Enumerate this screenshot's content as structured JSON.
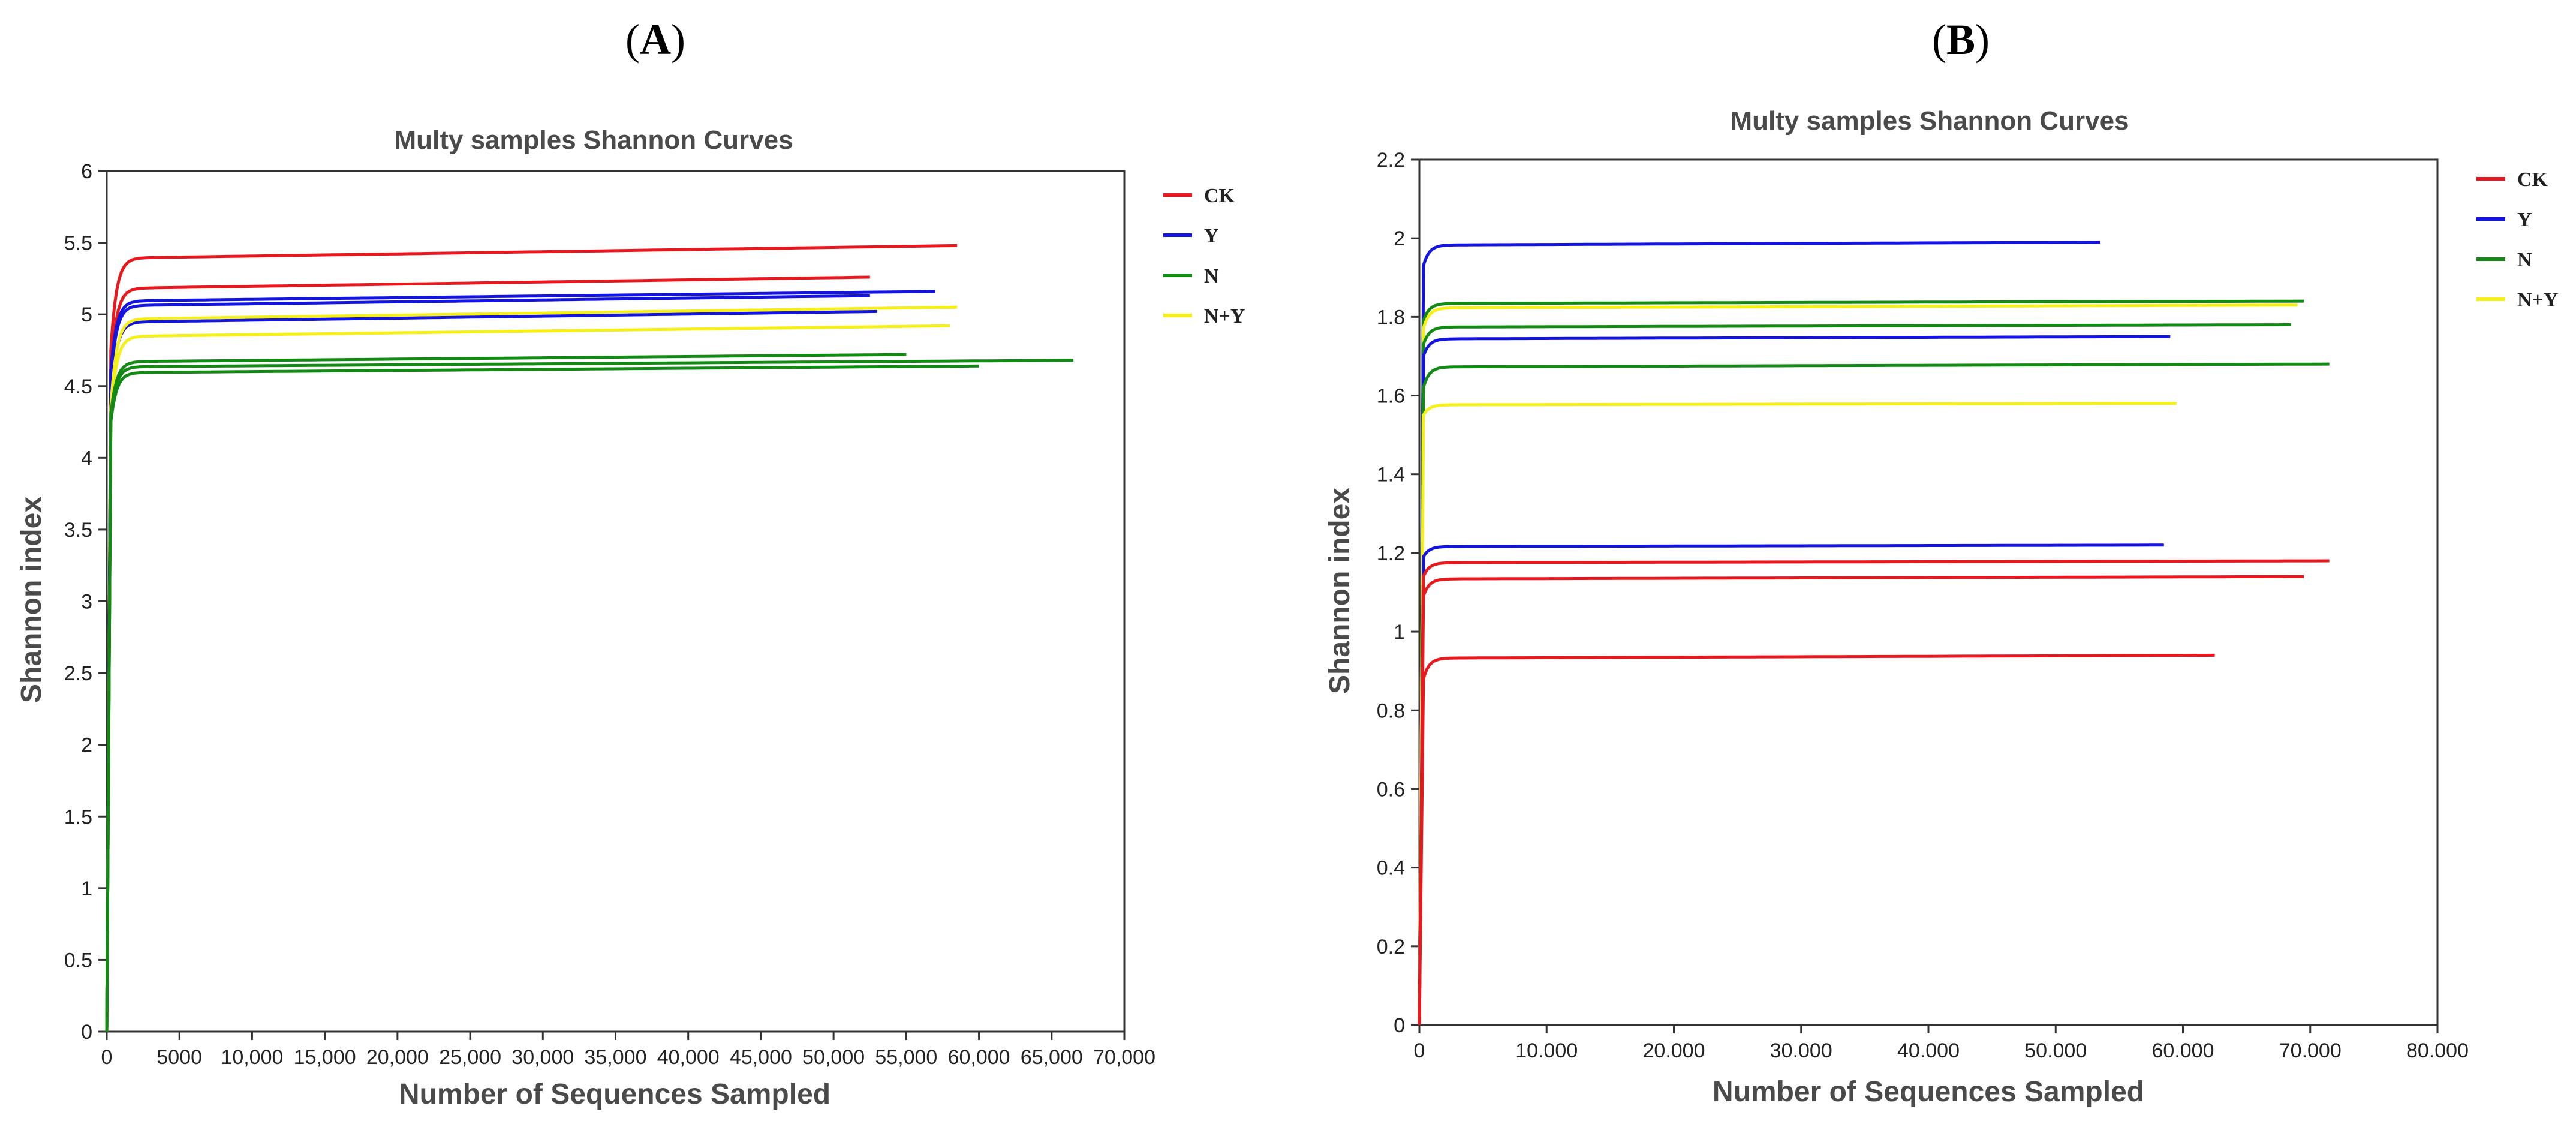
{
  "colors": {
    "CK": "#e8191e",
    "Y": "#1414e0",
    "N": "#138a14",
    "N+Y": "#f5ef1a"
  },
  "panels": [
    {
      "id": "A",
      "label": "A",
      "chart_data": {
        "type": "line",
        "title": "Multy samples Shannon Curves",
        "xlabel": "Number of Sequences Sampled",
        "ylabel": "Shannon index",
        "xlim": [
          0,
          70000
        ],
        "ylim": [
          0,
          6
        ],
        "xticks": [
          0,
          5000,
          10000,
          15000,
          20000,
          25000,
          30000,
          35000,
          40000,
          45000,
          50000,
          55000,
          60000,
          65000,
          70000
        ],
        "xtick_labels": [
          "0",
          "5000",
          "10,000",
          "15,000",
          "20,000",
          "25,000",
          "30,000",
          "35,000",
          "40,000",
          "45,000",
          "50,000",
          "55,000",
          "60,000",
          "65,000",
          "70,000"
        ],
        "yticks": [
          0,
          0.5,
          1,
          1.5,
          2,
          2.5,
          3,
          3.5,
          4,
          4.5,
          5,
          5.5,
          6
        ],
        "ytick_labels": [
          "0",
          "0.5",
          "1",
          "1.5",
          "2",
          "2.5",
          "3",
          "3.5",
          "4",
          "4.5",
          "5",
          "5.5",
          "6"
        ],
        "legend": [
          "CK",
          "Y",
          "N",
          "N+Y"
        ],
        "legend_position": "right",
        "series": [
          {
            "group": "CK",
            "start": 4.75,
            "plateau": 5.48,
            "end_x": 58500
          },
          {
            "group": "CK",
            "start": 4.6,
            "plateau": 5.26,
            "end_x": 52500
          },
          {
            "group": "Y",
            "start": 4.6,
            "plateau": 5.16,
            "end_x": 57000
          },
          {
            "group": "Y",
            "start": 4.55,
            "plateau": 5.13,
            "end_x": 52500
          },
          {
            "group": "Y",
            "start": 4.4,
            "plateau": 5.02,
            "end_x": 53000
          },
          {
            "group": "N+Y",
            "start": 4.35,
            "plateau": 5.05,
            "end_x": 58500
          },
          {
            "group": "N+Y",
            "start": 4.3,
            "plateau": 4.92,
            "end_x": 58000
          },
          {
            "group": "N",
            "start": 4.3,
            "plateau": 4.72,
            "end_x": 55000
          },
          {
            "group": "N",
            "start": 4.3,
            "plateau": 4.68,
            "end_x": 66500
          },
          {
            "group": "N",
            "start": 4.25,
            "plateau": 4.64,
            "end_x": 60000
          }
        ]
      }
    },
    {
      "id": "B",
      "label": "B",
      "chart_data": {
        "type": "line",
        "title": "Multy samples Shannon Curves",
        "xlabel": "Number of Sequences Sampled",
        "ylabel": "Shannon index",
        "xlim": [
          0,
          80000
        ],
        "ylim": [
          0,
          2.2
        ],
        "xticks": [
          0,
          10000,
          20000,
          30000,
          40000,
          50000,
          60000,
          70000,
          80000
        ],
        "xtick_labels": [
          "0",
          "10.000",
          "20.000",
          "30.000",
          "40.000",
          "50.000",
          "60.000",
          "70.000",
          "80.000"
        ],
        "yticks": [
          0,
          0.2,
          0.4,
          0.6,
          0.8,
          1,
          1.2,
          1.4,
          1.6,
          1.8,
          2,
          2.2
        ],
        "ytick_labels": [
          "0",
          "0.2",
          "0.4",
          "0.6",
          "0.8",
          "1",
          "1.2",
          "1.4",
          "1.6",
          "1.8",
          "2",
          "2.2"
        ],
        "legend": [
          "CK",
          "Y",
          "N",
          "N+Y"
        ],
        "legend_position": "right",
        "series": [
          {
            "group": "Y",
            "start": 1.93,
            "plateau": 1.99,
            "end_x": 53500
          },
          {
            "group": "N",
            "start": 1.79,
            "plateau": 1.84,
            "end_x": 69500
          },
          {
            "group": "N+Y",
            "start": 1.77,
            "plateau": 1.83,
            "end_x": 69000
          },
          {
            "group": "N",
            "start": 1.73,
            "plateau": 1.78,
            "end_x": 68500
          },
          {
            "group": "Y",
            "start": 1.7,
            "plateau": 1.75,
            "end_x": 59000
          },
          {
            "group": "N",
            "start": 1.62,
            "plateau": 1.68,
            "end_x": 71500
          },
          {
            "group": "N+Y",
            "start": 1.55,
            "plateau": 1.58,
            "end_x": 59500
          },
          {
            "group": "Y",
            "start": 1.19,
            "plateau": 1.22,
            "end_x": 58500
          },
          {
            "group": "CK",
            "start": 1.14,
            "plateau": 1.18,
            "end_x": 71500
          },
          {
            "group": "CK",
            "start": 1.09,
            "plateau": 1.14,
            "end_x": 69500
          },
          {
            "group": "CK",
            "start": 0.88,
            "plateau": 0.94,
            "end_x": 62500
          }
        ]
      }
    }
  ]
}
